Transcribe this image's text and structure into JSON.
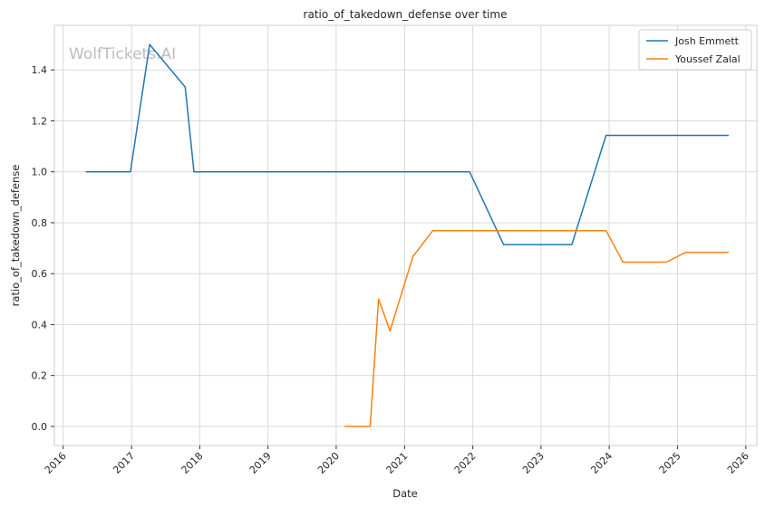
{
  "chart_data": {
    "type": "line",
    "title": "ratio_of_takedown_defense over time",
    "xlabel": "Date",
    "ylabel": "ratio_of_takedown_defense",
    "xlim": [
      "2015-11-15",
      "2026-03-01"
    ],
    "ylim": [
      -0.075,
      1.575
    ],
    "x_ticks": [
      "2016",
      "2017",
      "2018",
      "2019",
      "2020",
      "2021",
      "2022",
      "2023",
      "2024",
      "2025",
      "2026"
    ],
    "y_ticks": [
      "0.0",
      "0.2",
      "0.4",
      "0.6",
      "0.8",
      "1.0",
      "1.2",
      "1.4"
    ],
    "grid": true,
    "legend_position": "top-right",
    "watermark": "WolfTickets.AI",
    "series": [
      {
        "name": "Josh Emmett",
        "color": "#1f77b4",
        "points": [
          [
            "2016-05-01",
            1.0
          ],
          [
            "2016-12-26",
            1.0
          ],
          [
            "2017-04-08",
            1.5
          ],
          [
            "2017-10-15",
            1.333
          ],
          [
            "2017-12-01",
            1.0
          ],
          [
            "2021-12-15",
            1.0
          ],
          [
            "2022-06-15",
            0.714
          ],
          [
            "2023-06-15",
            0.714
          ],
          [
            "2023-12-15",
            1.143
          ],
          [
            "2025-10-01",
            1.143
          ]
        ]
      },
      {
        "name": "Youssef Zalal",
        "color": "#ff7f0e",
        "points": [
          [
            "2020-02-15",
            0.0
          ],
          [
            "2020-07-01",
            0.0
          ],
          [
            "2020-08-15",
            0.5
          ],
          [
            "2020-10-15",
            0.375
          ],
          [
            "2021-02-15",
            0.667
          ],
          [
            "2021-06-01",
            0.769
          ],
          [
            "2023-12-15",
            0.769
          ],
          [
            "2024-03-15",
            0.645
          ],
          [
            "2024-11-01",
            0.645
          ],
          [
            "2025-02-15",
            0.684
          ],
          [
            "2025-10-01",
            0.684
          ]
        ]
      }
    ]
  }
}
